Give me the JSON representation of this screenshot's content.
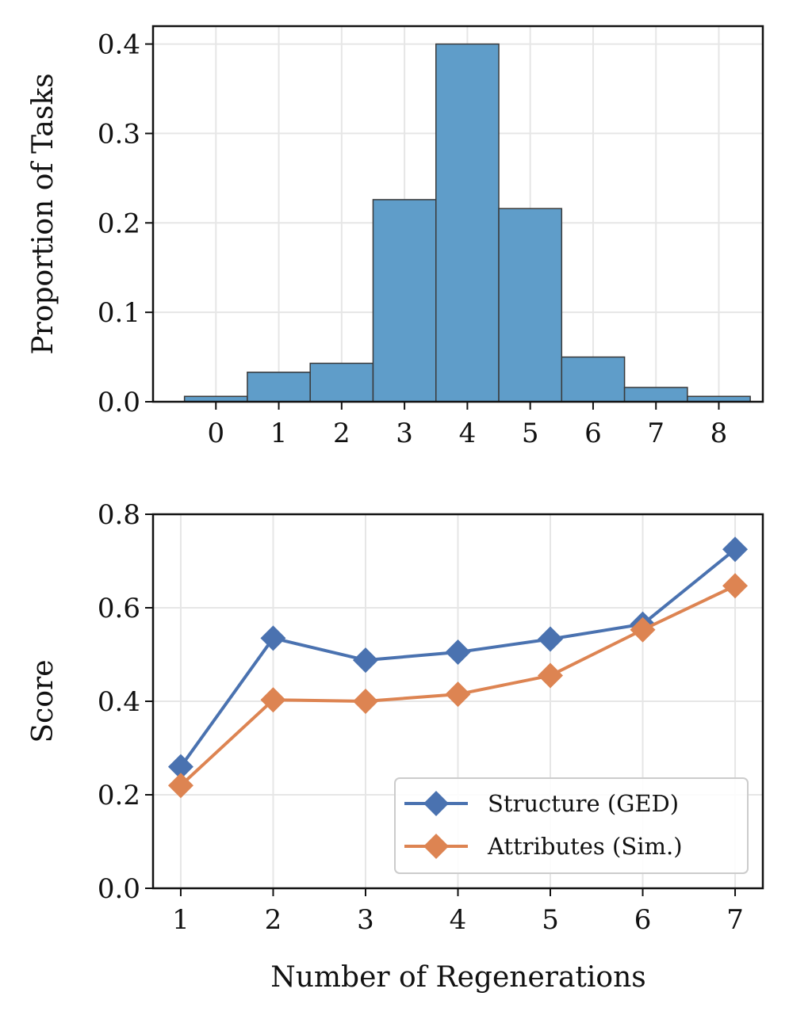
{
  "chart_data": [
    {
      "type": "bar",
      "title": "",
      "xlabel": "",
      "ylabel": "Proportion of Tasks",
      "categories": [
        "0",
        "1",
        "2",
        "3",
        "4",
        "5",
        "6",
        "7",
        "8"
      ],
      "values": [
        0.006,
        0.033,
        0.043,
        0.226,
        0.4,
        0.216,
        0.05,
        0.016,
        0.006
      ],
      "xlim": [
        -1,
        8.7
      ],
      "ylim": [
        0,
        0.42
      ],
      "yticks": [
        "0.0",
        "0.1",
        "0.2",
        "0.3",
        "0.4"
      ],
      "grid": true,
      "colors": {
        "bar": "#5f9dc9",
        "edge": "#3a3a3a"
      }
    },
    {
      "type": "line",
      "title": "",
      "xlabel": "Number of Regenerations",
      "ylabel": "Score",
      "x": [
        1,
        2,
        3,
        4,
        5,
        6,
        7
      ],
      "xlim": [
        0.7,
        7.3
      ],
      "ylim": [
        0,
        0.8
      ],
      "yticks": [
        "0.0",
        "0.2",
        "0.4",
        "0.6",
        "0.8"
      ],
      "xticks": [
        "1",
        "2",
        "3",
        "4",
        "5",
        "6",
        "7"
      ],
      "grid": true,
      "legend_position": "bottom-right",
      "series": [
        {
          "name": "Structure (GED)",
          "values": [
            0.26,
            0.535,
            0.488,
            0.505,
            0.533,
            0.565,
            0.725
          ],
          "color": "#4a72b0",
          "marker": "diamond"
        },
        {
          "name": "Attributes (Sim.)",
          "values": [
            0.22,
            0.403,
            0.4,
            0.415,
            0.455,
            0.553,
            0.647
          ],
          "color": "#dd8452",
          "marker": "diamond"
        }
      ]
    }
  ]
}
